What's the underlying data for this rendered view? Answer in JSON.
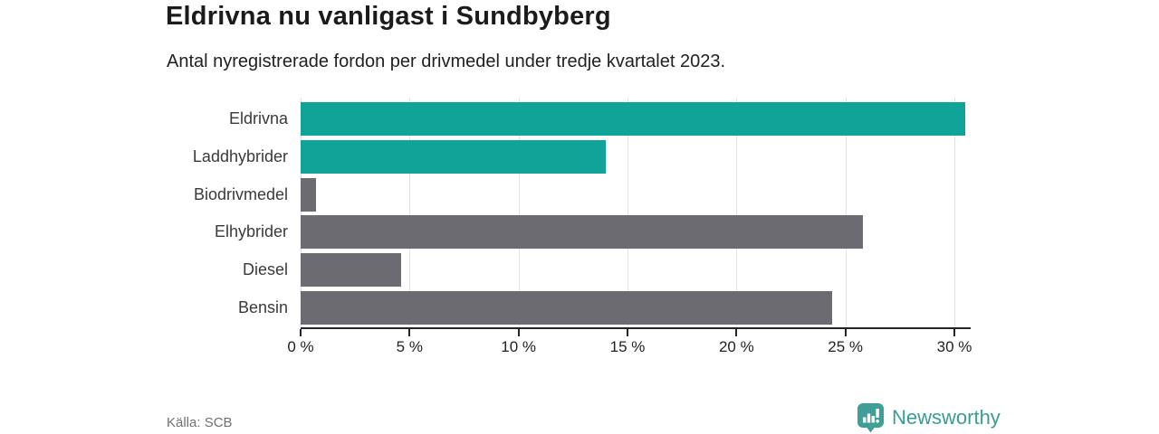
{
  "header": {
    "title": "Eldrivna nu vanligast i Sundbyberg",
    "subtitle": "Antal nyregistrerade fordon per drivmedel under tredje kvartalet 2023."
  },
  "chart_data": {
    "type": "bar",
    "orientation": "horizontal",
    "categories": [
      "Eldrivna",
      "Laddhybrider",
      "Biodrivmedel",
      "Elhybrider",
      "Diesel",
      "Bensin"
    ],
    "values": [
      30.5,
      14.0,
      0.7,
      25.8,
      4.6,
      24.4
    ],
    "unit": "%",
    "bar_colors": [
      "#10A398",
      "#10A398",
      "#6B6B71",
      "#6B6B71",
      "#6B6B71",
      "#6B6B71"
    ],
    "highlight_color": "#10A398",
    "default_color": "#6B6B71",
    "xlim": [
      0,
      30
    ],
    "x_ticks": [
      0,
      5,
      10,
      15,
      20,
      25,
      30
    ],
    "x_tick_suffix": " %",
    "grid": true,
    "gridline_color": "#e2e2e2",
    "legend": "none",
    "title": "Eldrivna nu vanligast i Sundbyberg",
    "xlabel": "",
    "ylabel": ""
  },
  "footer": {
    "source": "Källa: SCB",
    "brand": "Newsworthy",
    "brand_color": "#3B9C92"
  }
}
